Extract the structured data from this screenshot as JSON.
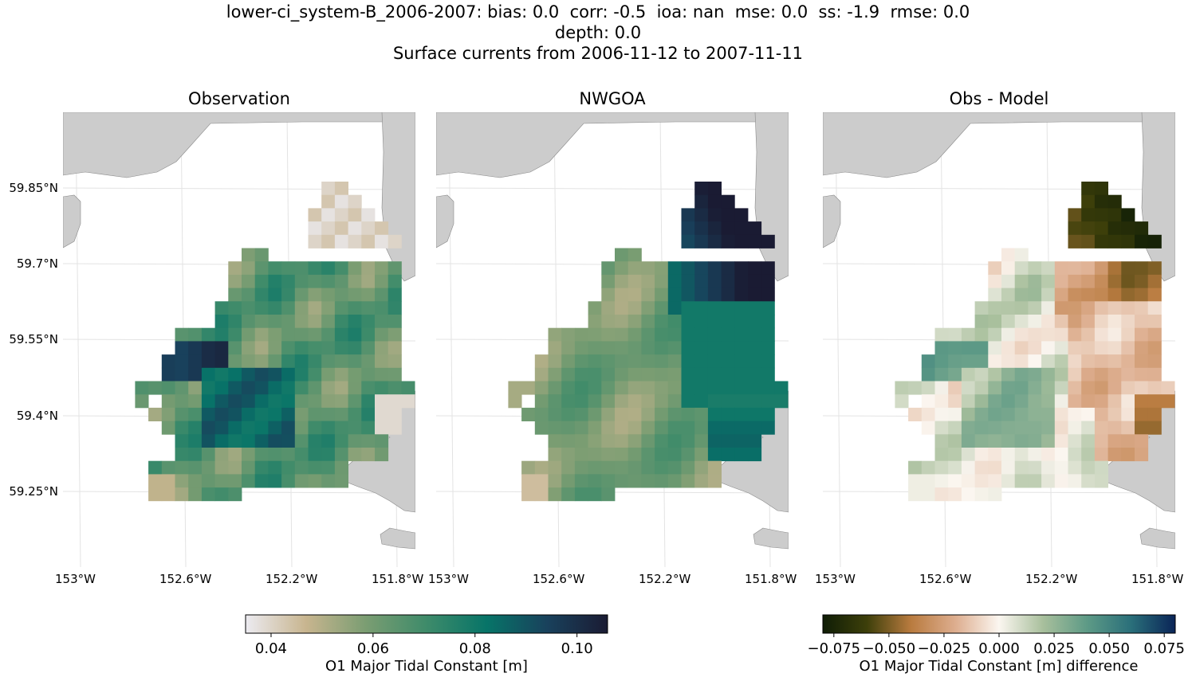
{
  "figure": {
    "suptitle_lines": [
      "lower-ci_system-B_2006-2007: bias: 0.0  corr: -0.5  ioa: nan  mse: 0.0  ss: -1.9  rmse: 0.0",
      "depth: 0.0",
      "Surface currents from 2006-11-12 to 2007-11-11"
    ]
  },
  "chart_data": {
    "type": "heatmap",
    "lon_ticks": [
      "153°W",
      "152.6°W",
      "152.2°W",
      "151.8°W"
    ],
    "lat_ticks": [
      "59.85°N",
      "59.7°N",
      "59.55°N",
      "59.4°N",
      "59.25°N"
    ],
    "panels": [
      {
        "id": "observation",
        "title": "Observation",
        "colormap": "values"
      },
      {
        "id": "nwgoa",
        "title": "NWGOA",
        "colormap": "values"
      },
      {
        "id": "obs_minus_model",
        "title": "Obs - Model",
        "colormap": "difference"
      }
    ],
    "colorbars": [
      {
        "id": "values",
        "label": "O1 Major Tidal Constant [m]",
        "range": [
          0.035,
          0.106
        ],
        "ticks": [
          "0.04",
          "0.06",
          "0.08",
          "0.10"
        ],
        "tick_values": [
          0.04,
          0.06,
          0.08,
          0.1
        ],
        "colors": [
          "#ecebf1",
          "#c8b58f",
          "#7a9d72",
          "#3e8b6a",
          "#077468",
          "#19415c",
          "#1a1b33"
        ]
      },
      {
        "id": "difference",
        "label": "O1 Major Tidal Constant [m] difference",
        "range": [
          -0.08,
          0.08
        ],
        "ticks": [
          "−0.075",
          "−0.050",
          "−0.025",
          "0.000",
          "0.025",
          "0.050",
          "0.075"
        ],
        "tick_values": [
          -0.075,
          -0.05,
          -0.025,
          0.0,
          0.025,
          0.05,
          0.075
        ],
        "colors": [
          "#0f1d06",
          "#3d3f0a",
          "#b97b3f",
          "#ddad8e",
          "#fbf6f0",
          "#a8bf9c",
          "#5d9a86",
          "#2a6f7a",
          "#0a2457"
        ]
      }
    ]
  }
}
